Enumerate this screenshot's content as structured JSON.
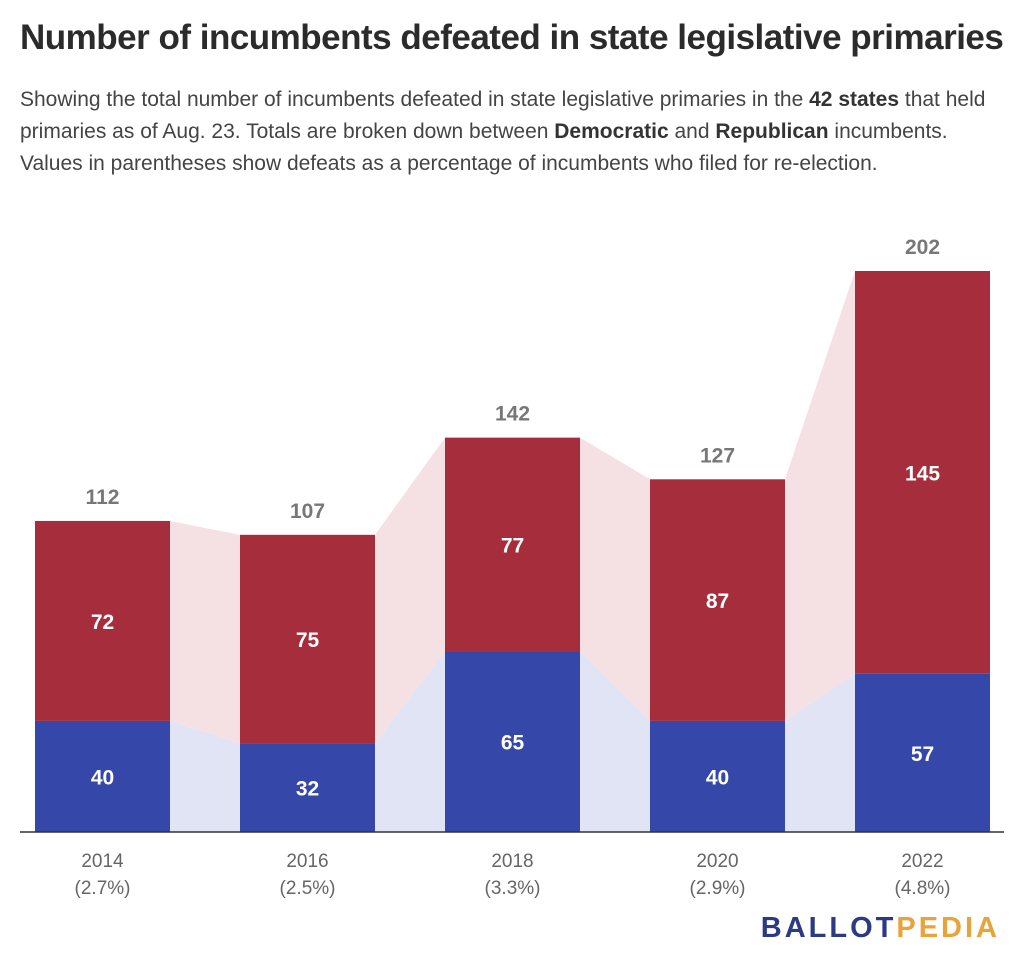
{
  "title": "Number of incumbents defeated in state legislative primaries",
  "subtitle": {
    "part1": "Showing the total number of incumbents defeated in state legislative primaries in the ",
    "bold": "42 states",
    "part2": " that held primaries as of Aug. 23. Totals are broken down between ",
    "dem_label": "Democratic",
    "part3": " and ",
    "rep_label": "Republican",
    "part4": " incumbents. Values in parentheses show defeats as a percentage of incumbents who filed for re-election."
  },
  "logo": {
    "ballot": "BALLOT",
    "pedia": "PEDIA"
  },
  "colors": {
    "democratic": "#3547a8",
    "republican": "#a62e3c",
    "dem_band": "#e1e4f5",
    "rep_band": "#f5e0e3",
    "total_label": "#777777",
    "axis": "#333333"
  },
  "chart_data": {
    "type": "bar",
    "stacked": true,
    "categories": [
      "2014",
      "2016",
      "2018",
      "2020",
      "2022"
    ],
    "category_sublabels": [
      "(2.7%)",
      "(2.5%)",
      "(3.3%)",
      "(2.9%)",
      "(4.8%)"
    ],
    "series": [
      {
        "name": "Democratic",
        "values": [
          40,
          32,
          65,
          40,
          57
        ]
      },
      {
        "name": "Republican",
        "values": [
          72,
          75,
          77,
          87,
          145
        ]
      }
    ],
    "totals": [
      112,
      107,
      142,
      127,
      202
    ],
    "ylim": [
      0,
      202
    ],
    "grid": false
  }
}
